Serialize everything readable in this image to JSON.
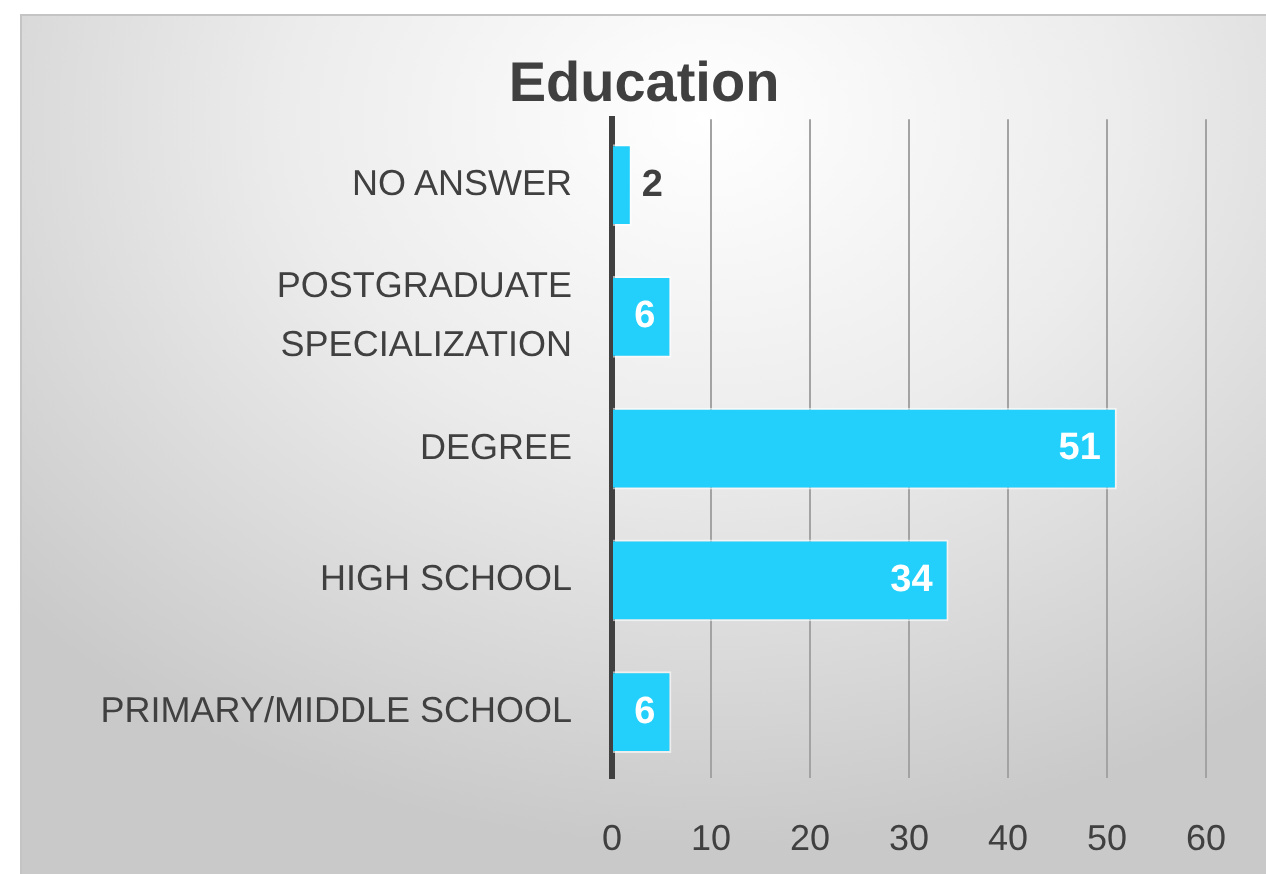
{
  "chart_data": {
    "type": "bar",
    "orientation": "horizontal",
    "title": "Education",
    "categories": [
      "NO ANSWER",
      "POSTGRADUATE SPECIALIZATION",
      "DEGREE",
      "HIGH SCHOOL",
      "PRIMARY/MIDDLE SCHOOL"
    ],
    "values": [
      2,
      6,
      51,
      34,
      6
    ],
    "color": "#22d0fb",
    "xlim": [
      0,
      60
    ],
    "xticks": [
      0,
      10,
      20,
      30,
      40,
      50,
      60
    ],
    "grid": "x",
    "data_labels": true
  }
}
